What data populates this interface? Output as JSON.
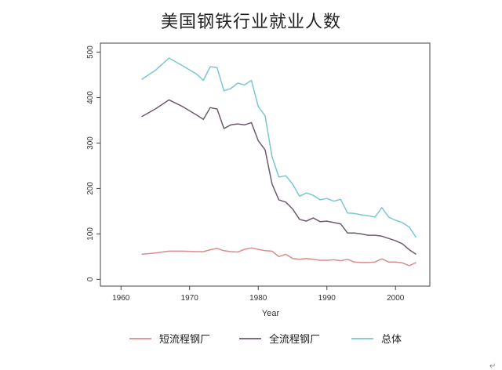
{
  "chart_data": {
    "type": "line",
    "title": "美国钢铁行业就业人数",
    "xlabel": "Year",
    "ylabel": "",
    "xlim": [
      1957,
      2005
    ],
    "ylim": [
      -15,
      520
    ],
    "xticks": [
      "1960",
      "1970",
      "1980",
      "1990",
      "2000"
    ],
    "yticks": [
      "0",
      "100",
      "200",
      "300",
      "400",
      "500"
    ],
    "grid": false,
    "legend": "bottom",
    "series": [
      {
        "name": "短流程钢厂",
        "color": "#d98d8d",
        "x": [
          1963,
          1965,
          1967,
          1969,
          1971,
          1972,
          1973,
          1974,
          1975,
          1976,
          1977,
          1978,
          1979,
          1980,
          1981,
          1982,
          1983,
          1984,
          1985,
          1986,
          1987,
          1988,
          1989,
          1990,
          1991,
          1992,
          1993,
          1994,
          1995,
          1996,
          1997,
          1998,
          1999,
          2000,
          2001,
          2002,
          2003
        ],
        "y": [
          55,
          58,
          62,
          62,
          61,
          61,
          65,
          68,
          63,
          61,
          60,
          66,
          69,
          66,
          63,
          62,
          50,
          55,
          46,
          44,
          46,
          44,
          42,
          42,
          43,
          41,
          44,
          38,
          37,
          37,
          38,
          45,
          38,
          38,
          36,
          30,
          37
        ]
      },
      {
        "name": "全流程钢厂",
        "color": "#6e5a6e",
        "x": [
          1963,
          1965,
          1967,
          1969,
          1971,
          1972,
          1973,
          1974,
          1975,
          1976,
          1977,
          1978,
          1979,
          1980,
          1981,
          1982,
          1983,
          1984,
          1985,
          1986,
          1987,
          1988,
          1989,
          1990,
          1991,
          1992,
          1993,
          1994,
          1995,
          1996,
          1997,
          1998,
          1999,
          2000,
          2001,
          2002,
          2003
        ],
        "y": [
          358,
          375,
          395,
          380,
          362,
          352,
          378,
          375,
          332,
          340,
          342,
          340,
          345,
          305,
          285,
          210,
          175,
          170,
          155,
          132,
          128,
          135,
          127,
          128,
          125,
          122,
          102,
          102,
          100,
          97,
          97,
          95,
          90,
          85,
          78,
          65,
          55
        ]
      },
      {
        "name": "总体",
        "color": "#7cc6d1",
        "x": [
          1963,
          1965,
          1967,
          1969,
          1971,
          1972,
          1973,
          1974,
          1975,
          1976,
          1977,
          1978,
          1979,
          1980,
          1981,
          1982,
          1983,
          1984,
          1985,
          1986,
          1987,
          1988,
          1989,
          1990,
          1991,
          1992,
          1993,
          1994,
          1995,
          1996,
          1997,
          1998,
          1999,
          2000,
          2001,
          2002,
          2003
        ],
        "y": [
          440,
          460,
          487,
          470,
          452,
          438,
          468,
          466,
          415,
          420,
          432,
          428,
          438,
          380,
          360,
          270,
          225,
          228,
          210,
          183,
          190,
          185,
          175,
          178,
          172,
          176,
          146,
          145,
          142,
          140,
          137,
          158,
          137,
          130,
          125,
          115,
          92
        ]
      }
    ]
  },
  "page_mark": "↵"
}
